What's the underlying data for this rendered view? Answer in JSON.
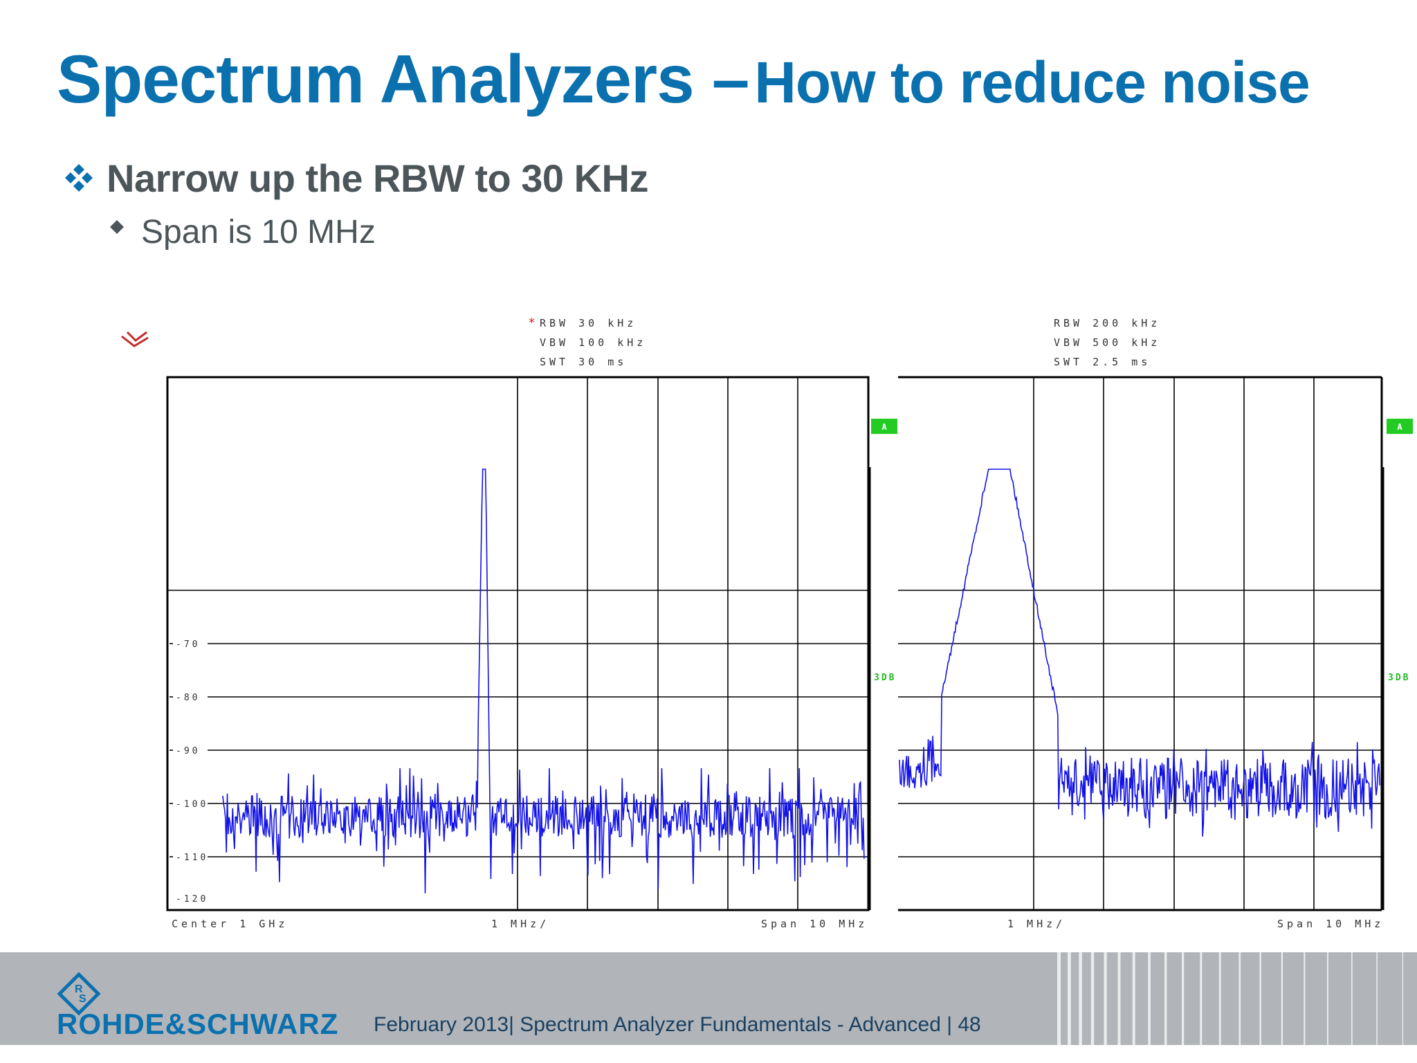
{
  "slide": {
    "title_main": "Spectrum Analyzers –",
    "title_sub": "How to reduce noise",
    "bullet_main": "Narrow up the RBW to 30 KHz",
    "bullet_sub": "Span is 10 MHz"
  },
  "left_panel": {
    "rbw_marker": "*",
    "rbw": "RBW  30  kHz",
    "vbw": "VBW  100  kHz",
    "swt": "SWT  30  ms",
    "trace_badge": "A",
    "ref_badge": "3DB",
    "y_ticks": [
      "-70",
      "-80",
      "-90",
      "-100",
      "-110",
      "-120"
    ],
    "center_label": "Center  1 GHz",
    "div_label": "1  MHz/",
    "span_label": "Span  10  MHz"
  },
  "right_panel": {
    "rbw": "RBW  200  kHz",
    "vbw": "VBW  500  kHz",
    "swt": "SWT  2.5  ms",
    "trace_badge": "A",
    "ref_badge": "3DB",
    "div_label": "1  MHz/",
    "span_label": "Span  10  MHz"
  },
  "footer": {
    "brand": "ROHDE&SCHWARZ",
    "meta": "February 2013|  Spectrum Analyzer Fundamentals - Advanced  |  48"
  },
  "colors": {
    "title": "#0a70ae",
    "body_text": "#4c5559",
    "trace": "#1212e8",
    "grid": "#000000",
    "badge_green": "#22cc22",
    "footer_bg": "#b1b5ba"
  }
}
